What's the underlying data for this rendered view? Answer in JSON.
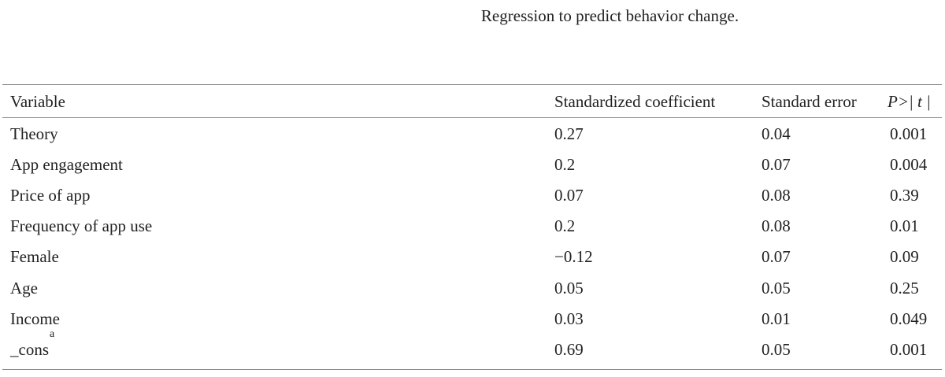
{
  "caption": "Regression to predict behavior change.",
  "table": {
    "headers": {
      "variable": "Variable",
      "coefficient": "Standardized coefficient",
      "std_error": "Standard error",
      "p_value": "P>| t |"
    },
    "rows": [
      {
        "variable": "Theory",
        "coefficient": "0.27",
        "std_error": "0.04",
        "p_value": "0.001"
      },
      {
        "variable": "App engagement",
        "coefficient": "0.2",
        "std_error": "0.07",
        "p_value": "0.004"
      },
      {
        "variable": "Price of app",
        "coefficient": "0.07",
        "std_error": "0.08",
        "p_value": "0.39"
      },
      {
        "variable": "Frequency of app use",
        "coefficient": "0.2",
        "std_error": "0.08",
        "p_value": "0.01"
      },
      {
        "variable": "Female",
        "coefficient": "−0.12",
        "std_error": "0.07",
        "p_value": "0.09"
      },
      {
        "variable": "Age",
        "coefficient": "0.05",
        "std_error": "0.05",
        "p_value": "0.25"
      },
      {
        "variable": "Income",
        "coefficient": "0.03",
        "std_error": "0.01",
        "p_value": "0.049"
      },
      {
        "variable": "_cons",
        "variable_sup": "a",
        "coefficient": "0.69",
        "std_error": "0.05",
        "p_value": "0.001"
      }
    ]
  }
}
